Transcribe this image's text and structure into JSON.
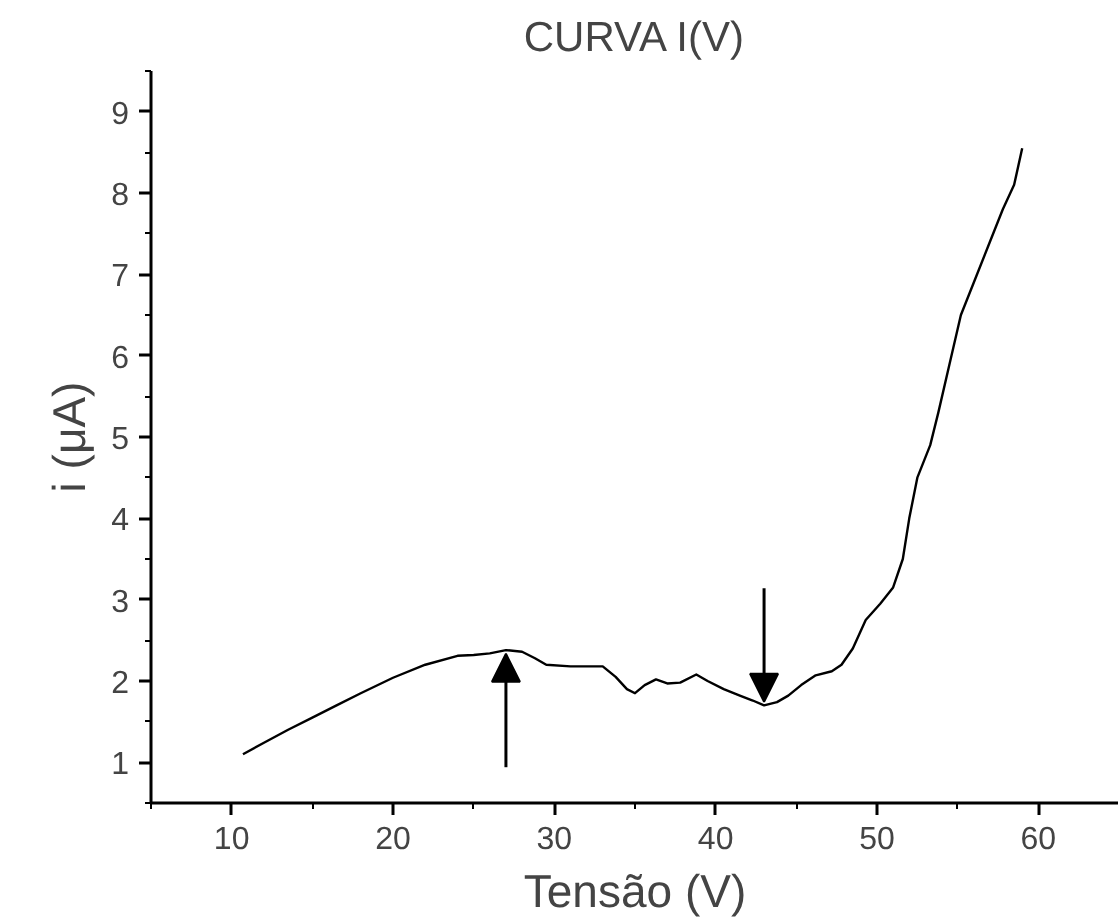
{
  "chart_data": {
    "type": "line",
    "title": "CURVA I(V)",
    "xlabel": "Tensão (V)",
    "ylabel": "i (μA)",
    "x": [
      10.7,
      12,
      13.5,
      15,
      16.5,
      18,
      20,
      22,
      24,
      25,
      26,
      27,
      28,
      28.8,
      29.5,
      31,
      33,
      33.8,
      34.5,
      35,
      35.6,
      36.3,
      37,
      37.8,
      38.8,
      39.5,
      40.5,
      41.5,
      42.3,
      43,
      43.8,
      44.5,
      45.3,
      46.2,
      47.2,
      47.8,
      48.5,
      49.3,
      50.2,
      51,
      51.6,
      52,
      52.5,
      53.3,
      53.8,
      54.5,
      55.2,
      56,
      57,
      57.8,
      58.5,
      59
    ],
    "series": [
      {
        "color": "#000000",
        "values": [
          1.1,
          1.24,
          1.4,
          1.55,
          1.7,
          1.85,
          2.04,
          2.2,
          2.31,
          2.32,
          2.34,
          2.38,
          2.36,
          2.28,
          2.2,
          2.18,
          2.18,
          2.05,
          1.9,
          1.85,
          1.95,
          2.02,
          1.97,
          1.98,
          2.08,
          2.0,
          1.9,
          1.82,
          1.76,
          1.7,
          1.74,
          1.82,
          1.95,
          2.07,
          2.12,
          2.2,
          2.4,
          2.75,
          2.95,
          3.15,
          3.5,
          4.0,
          4.5,
          4.9,
          5.3,
          5.9,
          6.5,
          6.9,
          7.4,
          7.8,
          8.1,
          8.55
        ]
      }
    ],
    "xlim": [
      5,
      65
    ],
    "ylim": [
      0.5,
      9.5
    ],
    "xticks": [
      {
        "value": 5,
        "label": null
      },
      10,
      {
        "value": 15,
        "label": null
      },
      20,
      {
        "value": 25,
        "label": null
      },
      30,
      {
        "value": 35,
        "label": null
      },
      40,
      {
        "value": 45,
        "label": null
      },
      50,
      {
        "value": 55,
        "label": null
      },
      60,
      {
        "value": 65,
        "label": null
      }
    ],
    "yticks": [
      {
        "value": 0.5,
        "label": null
      },
      1,
      {
        "value": 1.5,
        "label": null
      },
      2,
      {
        "value": 2.5,
        "label": null
      },
      3,
      {
        "value": 3.5,
        "label": null
      },
      4,
      {
        "value": 4.5,
        "label": null
      },
      5,
      {
        "value": 5.5,
        "label": null
      },
      6,
      {
        "value": 6.5,
        "label": null
      },
      7,
      {
        "value": 7.5,
        "label": null
      },
      8,
      {
        "value": 8.5,
        "label": null
      },
      9,
      {
        "value": 9.5,
        "label": null
      }
    ],
    "grid": false,
    "marker": "none",
    "line_style": "solid"
  }
}
